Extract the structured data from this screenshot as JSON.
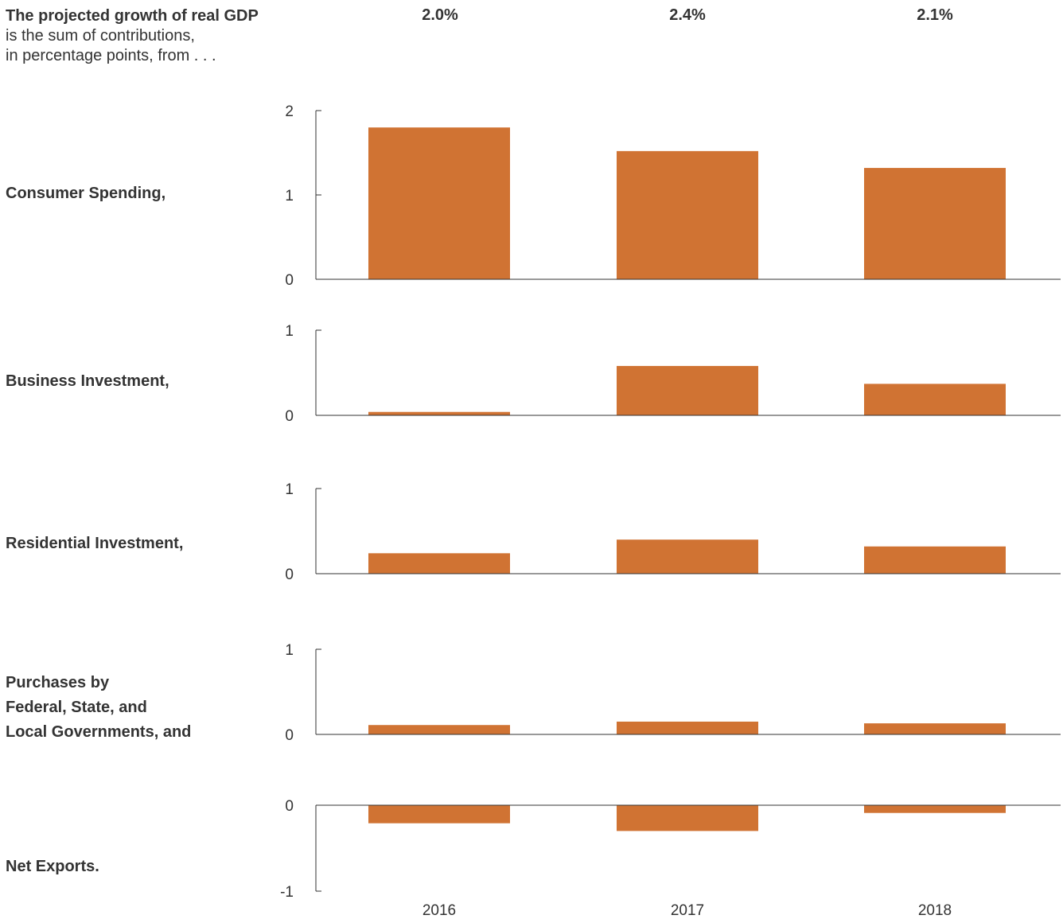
{
  "intro": {
    "line1": "The projected growth of real GDP",
    "line2": "is the sum of contributions,",
    "line3": "in percentage points, from . . ."
  },
  "totals": [
    "2.0%",
    "2.4%",
    "2.1%"
  ],
  "colors": {
    "bar": "#D07333",
    "axis": "#333333",
    "text": "#333333"
  },
  "chart_data": [
    {
      "type": "bar",
      "label": "Consumer Spending,",
      "categories": [
        "2016",
        "2017",
        "2018"
      ],
      "values": [
        1.8,
        1.52,
        1.32
      ],
      "ylim": [
        0,
        2
      ],
      "yticks": [
        0,
        1,
        2
      ],
      "grid": false
    },
    {
      "type": "bar",
      "label": "Business Investment,",
      "categories": [
        "2016",
        "2017",
        "2018"
      ],
      "values": [
        0.04,
        0.58,
        0.37
      ],
      "ylim": [
        0,
        1
      ],
      "yticks": [
        0,
        1
      ],
      "grid": false
    },
    {
      "type": "bar",
      "label": "Residential Investment,",
      "categories": [
        "2016",
        "2017",
        "2018"
      ],
      "values": [
        0.24,
        0.4,
        0.32
      ],
      "ylim": [
        0,
        1
      ],
      "yticks": [
        0,
        1
      ],
      "grid": false
    },
    {
      "type": "bar",
      "label": "Purchases by\nFederal, State, and\nLocal Governments, and",
      "categories": [
        "2016",
        "2017",
        "2018"
      ],
      "values": [
        0.11,
        0.15,
        0.13
      ],
      "ylim": [
        0,
        1
      ],
      "yticks": [
        0,
        1
      ],
      "grid": false
    },
    {
      "type": "bar",
      "label": "Net Exports.",
      "categories": [
        "2016",
        "2017",
        "2018"
      ],
      "values": [
        -0.21,
        -0.3,
        -0.09
      ],
      "ylim": [
        -1,
        0
      ],
      "yticks": [
        -1,
        0
      ],
      "grid": false
    }
  ]
}
